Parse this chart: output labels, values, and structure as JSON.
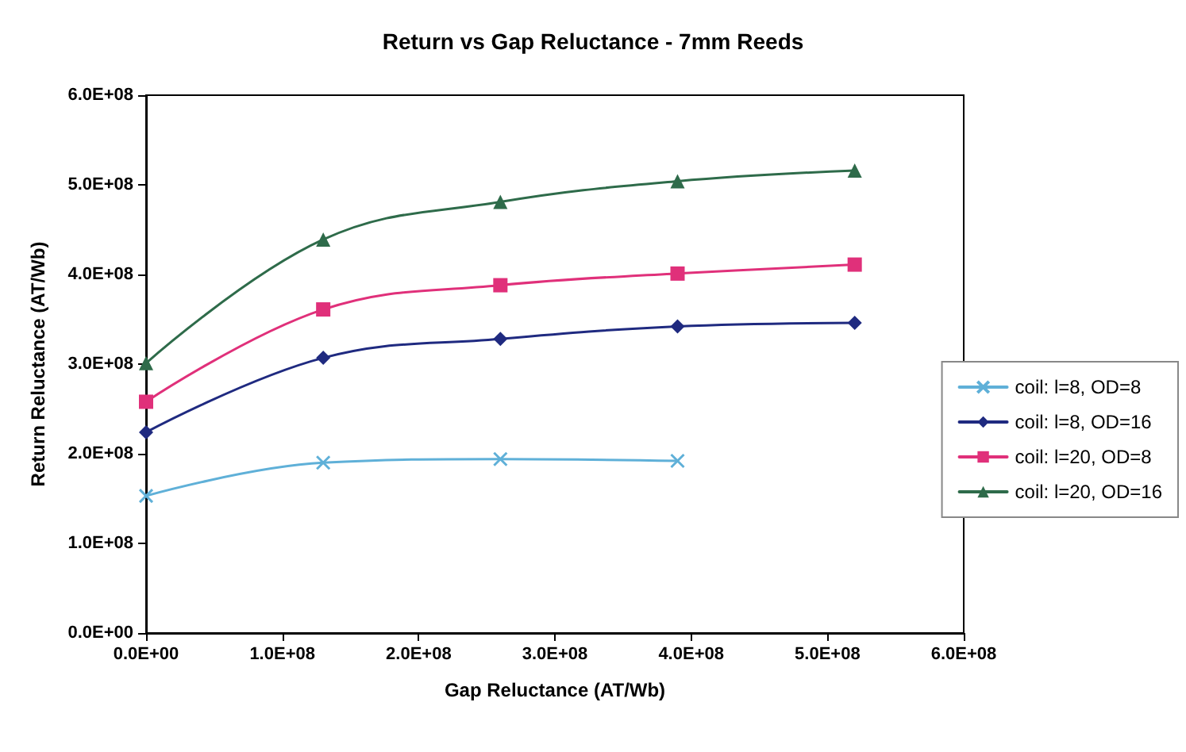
{
  "chart_data": {
    "type": "line",
    "title": "Return vs Gap Reluctance - 7mm Reeds",
    "xlabel": "Gap Reluctance (AT/Wb)",
    "ylabel": "Return Reluctance (AT/Wb)",
    "x": [
      0,
      130000000,
      260000000,
      390000000,
      520000000
    ],
    "series": [
      {
        "name": "coil: l=8, OD=8",
        "color": "#5fb0d8",
        "marker": "cross",
        "values": [
          153000000,
          190000000,
          194000000,
          192000000,
          null
        ]
      },
      {
        "name": "coil: l=8, OD=16",
        "color": "#1f2a80",
        "marker": "diamond",
        "values": [
          224000000,
          307000000,
          328000000,
          342000000,
          346000000
        ]
      },
      {
        "name": "coil: l=20, OD=8",
        "color": "#e0307a",
        "marker": "square",
        "values": [
          258000000,
          361000000,
          388000000,
          401000000,
          411000000
        ]
      },
      {
        "name": "coil: l=20, OD=16",
        "color": "#2e6b4a",
        "marker": "triangle",
        "values": [
          301000000,
          439000000,
          481000000,
          504000000,
          516000000
        ]
      }
    ],
    "xlim": [
      0,
      600000000
    ],
    "ylim": [
      0,
      600000000
    ],
    "xticks": [
      {
        "value": 0,
        "label": "0.0E+00"
      },
      {
        "value": 100000000,
        "label": "1.0E+08"
      },
      {
        "value": 200000000,
        "label": "2.0E+08"
      },
      {
        "value": 300000000,
        "label": "3.0E+08"
      },
      {
        "value": 400000000,
        "label": "4.0E+08"
      },
      {
        "value": 500000000,
        "label": "5.0E+08"
      },
      {
        "value": 600000000,
        "label": "6.0E+08"
      }
    ],
    "yticks": [
      {
        "value": 0,
        "label": "0.0E+00"
      },
      {
        "value": 100000000,
        "label": "1.0E+08"
      },
      {
        "value": 200000000,
        "label": "2.0E+08"
      },
      {
        "value": 300000000,
        "label": "3.0E+08"
      },
      {
        "value": 400000000,
        "label": "4.0E+08"
      },
      {
        "value": 500000000,
        "label": "5.0E+08"
      },
      {
        "value": 600000000,
        "label": "6.0E+08"
      }
    ],
    "grid": false,
    "legend": "right",
    "line_style": "solid"
  }
}
